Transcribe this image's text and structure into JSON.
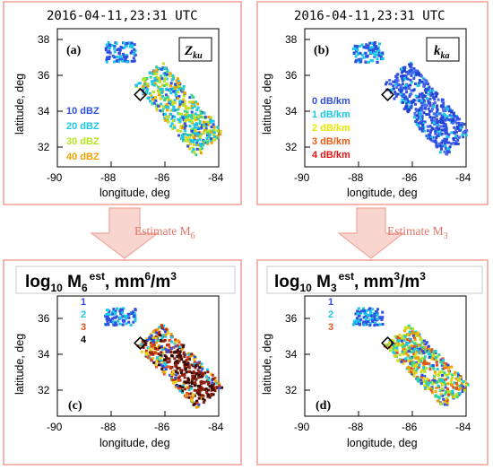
{
  "arrows": {
    "left": {
      "label": "Estimate M",
      "sub": "6"
    },
    "right": {
      "label": "Estimate M",
      "sub": "3"
    }
  },
  "axis_labels": {
    "x": "longitude, deg",
    "y": "latitude, deg"
  },
  "panels": [
    {
      "id": "a",
      "tag": "(a)",
      "timestamp": "2016-04-11,23:31 UTC",
      "var_main": "Z",
      "var_sub": "ku",
      "legend": [
        {
          "text": "10 dBZ",
          "color": "#2f4fe0"
        },
        {
          "text": "20 dBZ",
          "color": "#19c8e6"
        },
        {
          "text": "30 dBZ",
          "color": "#b4e61e"
        },
        {
          "text": "40 dBZ",
          "color": "#f0a000"
        }
      ],
      "colormap": "zku"
    },
    {
      "id": "b",
      "tag": "(b)",
      "timestamp": "2016-04-11,23:31 UTC",
      "var_main": "k",
      "var_sub": "ka",
      "legend": [
        {
          "text": "0 dB/km",
          "color": "#2f4fe0"
        },
        {
          "text": "1 dB/km",
          "color": "#19c8e6"
        },
        {
          "text": "2 dB/km",
          "color": "#e6e600"
        },
        {
          "text": "3 dB/km",
          "color": "#f05a14"
        },
        {
          "text": "4 dB/km",
          "color": "#e61414"
        }
      ],
      "colormap": "kka"
    },
    {
      "id": "c",
      "tag": "(c)",
      "title_main": "log",
      "title_base": "10",
      "title_var": " M",
      "title_var_sub": "6",
      "title_sup": "est",
      "title_units": ", mm",
      "title_units_sup": "6",
      "title_units_tail": "/m",
      "title_units_tail_sup": "3",
      "legend": [
        {
          "text": "1",
          "color": "#2f4fe0"
        },
        {
          "text": "2",
          "color": "#19c8e6"
        },
        {
          "text": "3",
          "color": "#e6501e"
        },
        {
          "text": "4",
          "color": "#000000"
        }
      ],
      "colormap": "m6"
    },
    {
      "id": "d",
      "tag": "(d)",
      "title_main": "log",
      "title_base": "10",
      "title_var": " M",
      "title_var_sub": "3",
      "title_sup": "est",
      "title_units": ", mm",
      "title_units_sup": "3",
      "title_units_tail": "/m",
      "title_units_tail_sup": "3",
      "legend": [
        {
          "text": "1",
          "color": "#2f4fe0"
        },
        {
          "text": "2",
          "color": "#19c8e6"
        },
        {
          "text": "3",
          "color": "#e6501e"
        }
      ],
      "colormap": "m3"
    }
  ],
  "x_ticks": [
    "-90",
    "-88",
    "-86",
    "-84"
  ],
  "y_ticks_top": [
    "38",
    "36",
    "34",
    "32"
  ],
  "y_ticks_bottom": [
    "36",
    "34",
    "32"
  ]
}
